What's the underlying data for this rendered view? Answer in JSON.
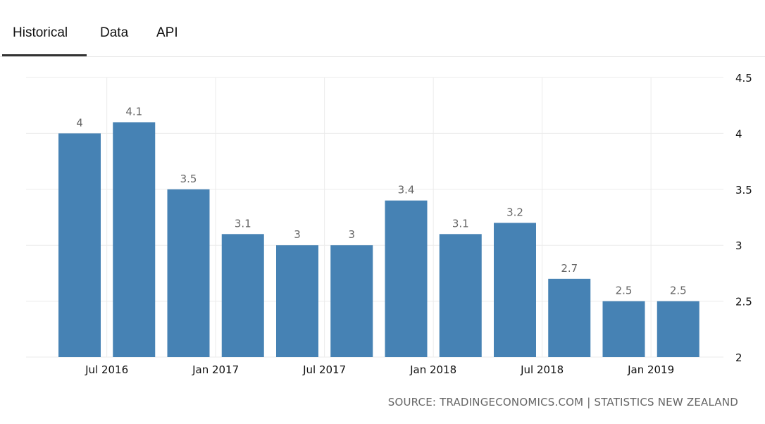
{
  "tabs": [
    {
      "label": "Historical",
      "active": true
    },
    {
      "label": "Data",
      "active": false
    },
    {
      "label": "API",
      "active": false
    }
  ],
  "source": "SOURCE: TRADINGECONOMICS.COM | STATISTICS NEW ZEALAND",
  "colors": {
    "bar": "#4682b4",
    "grid": "#ebebeb",
    "label": "#666666",
    "axis": "#111111"
  },
  "chart_data": {
    "type": "bar",
    "categories": [
      "2016-06",
      "2016-09",
      "2016-12",
      "2017-03",
      "2017-06",
      "2017-09",
      "2017-12",
      "2018-03",
      "2018-06",
      "2018-09",
      "2018-12",
      "2019-03"
    ],
    "values": [
      4,
      4.1,
      3.5,
      3.1,
      3,
      3,
      3.4,
      3.1,
      3.2,
      2.7,
      2.5,
      2.5
    ],
    "value_labels": [
      "4",
      "4.1",
      "3.5",
      "3.1",
      "3",
      "3",
      "3.4",
      "3.1",
      "3.2",
      "2.7",
      "2.5",
      "2.5"
    ],
    "x_ticks": [
      {
        "label": "Jul 2016",
        "after_category": "2016-06"
      },
      {
        "label": "Jan 2017",
        "after_category": "2016-12"
      },
      {
        "label": "Jul 2017",
        "after_category": "2017-06"
      },
      {
        "label": "Jan 2018",
        "after_category": "2017-12"
      },
      {
        "label": "Jul 2018",
        "after_category": "2018-06"
      },
      {
        "label": "Jan 2019",
        "after_category": "2018-12"
      }
    ],
    "y_ticks": [
      "2",
      "2.5",
      "3",
      "3.5",
      "4",
      "4.5"
    ],
    "ylim": [
      2,
      4.5
    ],
    "y_axis_side": "right",
    "grid": true,
    "legend": false,
    "title": "",
    "xlabel": "",
    "ylabel": ""
  }
}
